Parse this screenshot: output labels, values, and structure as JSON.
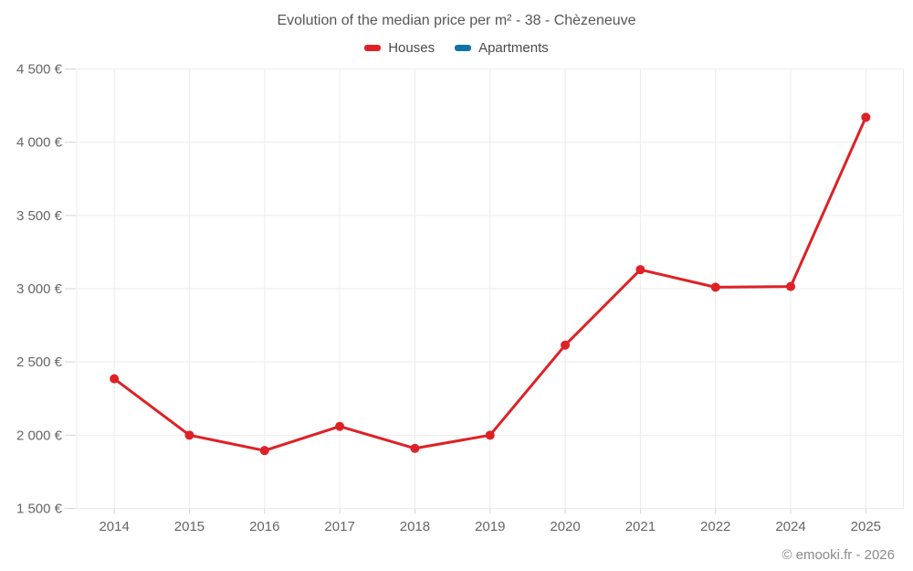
{
  "title": "Evolution of the median price per m² - 38 - Chèzeneuve",
  "watermark": "© emooki.fr - 2026",
  "legend": [
    {
      "label": "Houses",
      "color": "#de2126"
    },
    {
      "label": "Apartments",
      "color": "#1272a5"
    }
  ],
  "colors": {
    "gridline": "#ececec",
    "tick": "#d6d6d6",
    "axis_text": "#666666"
  },
  "chart_data": {
    "type": "line",
    "title": "Evolution of the median price per m² - 38 - Chèzeneuve",
    "x": [
      "2014",
      "2015",
      "2016",
      "2017",
      "2018",
      "2019",
      "2020",
      "2021",
      "2022",
      "2024",
      "2025"
    ],
    "series": [
      {
        "name": "Houses",
        "color": "#de2126",
        "values": [
          2385,
          2000,
          1895,
          2060,
          1910,
          2000,
          2615,
          3130,
          3010,
          3015,
          4170
        ]
      },
      {
        "name": "Apartments",
        "color": "#1272a5",
        "values": []
      }
    ],
    "ylim": [
      1500,
      4500
    ],
    "yticks": [
      {
        "value": 1500,
        "label": "1 500 €"
      },
      {
        "value": 2000,
        "label": "2 000 €"
      },
      {
        "value": 2500,
        "label": "2 500 €"
      },
      {
        "value": 3000,
        "label": "3 000 €"
      },
      {
        "value": 3500,
        "label": "3 500 €"
      },
      {
        "value": 4000,
        "label": "4 000 €"
      },
      {
        "value": 4500,
        "label": "4 500 €"
      }
    ],
    "grid": true,
    "legend_position": "top"
  }
}
